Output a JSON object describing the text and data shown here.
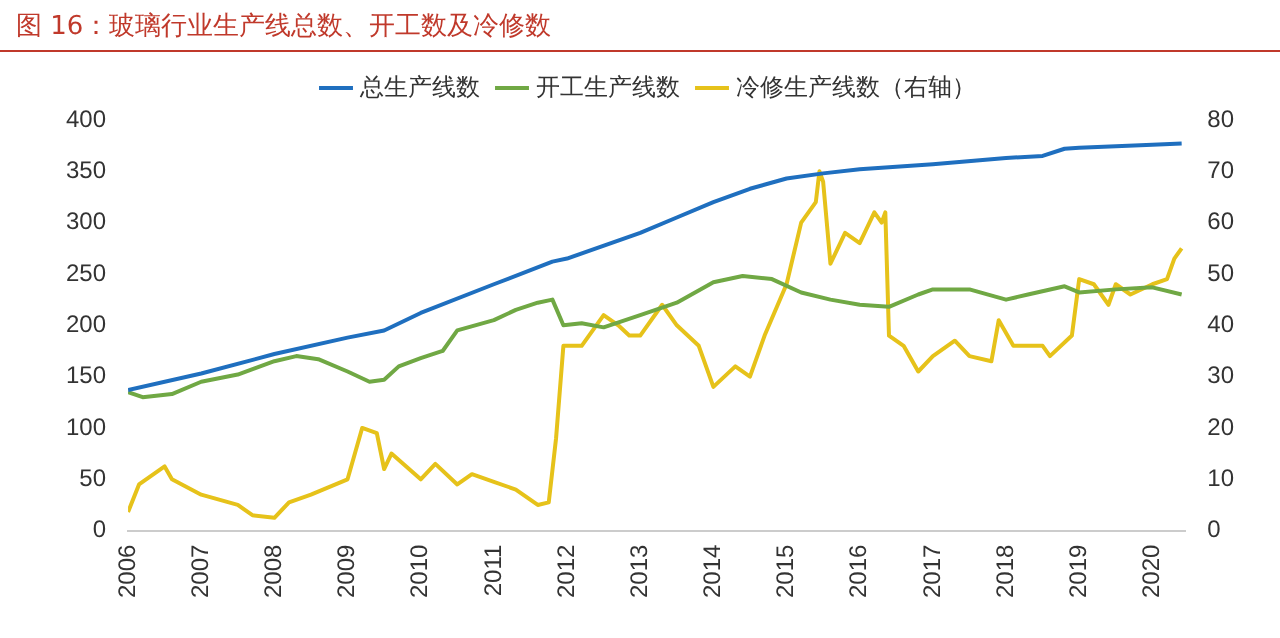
{
  "chart_data": {
    "type": "line",
    "title": "图 16：玻璃行业生产线总数、开工数及冷修数",
    "legend": "top",
    "grid": false,
    "marker": "none",
    "line_style": "solid",
    "xlim": [
      2006,
      2020.45
    ],
    "xticks": [
      2006,
      2007,
      2008,
      2009,
      2010,
      2011,
      2012,
      2013,
      2014,
      2015,
      2016,
      2017,
      2018,
      2019,
      2020
    ],
    "ylim": [
      0,
      400
    ],
    "yticks": [
      0,
      50,
      100,
      150,
      200,
      250,
      300,
      350,
      400
    ],
    "y2lim": [
      0,
      80
    ],
    "y2ticks": [
      0,
      10,
      20,
      30,
      40,
      50,
      60,
      70,
      80
    ],
    "series": [
      {
        "name": "总生产线数",
        "color": "#1f6fbf",
        "x": [
          2006,
          2007,
          2008,
          2009,
          2009.5,
          2010,
          2011,
          2011.8,
          2012,
          2013,
          2013.5,
          2014,
          2014.5,
          2015,
          2015.5,
          2016,
          2017,
          2018,
          2018.5,
          2018.8,
          2019,
          2020,
          2020.4
        ],
        "values": [
          137,
          153,
          172,
          188,
          195,
          212,
          240,
          262,
          265,
          290,
          305,
          320,
          333,
          343,
          348,
          352,
          357,
          363,
          365,
          372,
          373,
          376,
          377
        ]
      },
      {
        "name": "开工生产线数",
        "color": "#70a844",
        "x": [
          2006,
          2006.2,
          2006.6,
          2007,
          2007.5,
          2008,
          2008.3,
          2008.6,
          2009,
          2009.3,
          2009.5,
          2009.7,
          2010,
          2010.3,
          2010.5,
          2011,
          2011.3,
          2011.6,
          2011.8,
          2011.95,
          2012.2,
          2012.5,
          2013,
          2013.5,
          2014,
          2014.4,
          2014.8,
          2015.2,
          2015.6,
          2016,
          2016.4,
          2016.8,
          2017,
          2017.5,
          2018,
          2018.3,
          2018.8,
          2019,
          2019.5,
          2020,
          2020.4
        ],
        "values": [
          135,
          130,
          133,
          145,
          152,
          165,
          170,
          167,
          155,
          145,
          147,
          160,
          168,
          175,
          195,
          205,
          215,
          222,
          225,
          200,
          202,
          198,
          210,
          222,
          242,
          248,
          245,
          232,
          225,
          220,
          218,
          230,
          235,
          235,
          225,
          230,
          238,
          232,
          235,
          237,
          230
        ]
      },
      {
        "name": "冷修生产线数（右轴）",
        "color": "#e6c21a",
        "axis": "y2",
        "x": [
          2006,
          2006.15,
          2006.5,
          2006.6,
          2007,
          2007.5,
          2007.7,
          2008,
          2008.2,
          2008.5,
          2009,
          2009.2,
          2009.4,
          2009.5,
          2009.6,
          2010,
          2010.2,
          2010.5,
          2010.7,
          2011,
          2011.3,
          2011.6,
          2011.75,
          2011.85,
          2011.95,
          2012.2,
          2012.5,
          2012.7,
          2012.85,
          2013,
          2013.3,
          2013.5,
          2013.8,
          2014,
          2014.3,
          2014.5,
          2014.7,
          2015,
          2015.2,
          2015.4,
          2015.45,
          2015.5,
          2015.6,
          2015.8,
          2016,
          2016.2,
          2016.3,
          2016.35,
          2016.4,
          2016.6,
          2016.8,
          2017,
          2017.3,
          2017.5,
          2017.8,
          2017.9,
          2018.1,
          2018.5,
          2018.6,
          2018.9,
          2019,
          2019.2,
          2019.4,
          2019.5,
          2019.7,
          2020,
          2020.2,
          2020.3,
          2020.4
        ],
        "values": [
          3.6,
          9,
          12.5,
          10,
          7,
          5,
          3,
          2.5,
          5.5,
          7,
          10,
          20,
          19,
          12,
          15,
          10,
          13,
          9,
          11,
          9.5,
          8,
          5,
          5.5,
          18,
          36,
          36,
          42,
          40,
          38,
          38,
          44,
          40,
          36,
          28,
          32,
          30,
          38,
          48,
          60,
          64,
          70,
          68,
          52,
          58,
          56,
          62,
          60,
          62,
          38,
          36,
          31,
          34,
          37,
          34,
          33,
          41,
          36,
          36,
          34,
          38,
          49,
          48,
          44,
          48,
          46,
          48,
          49,
          53,
          55
        ]
      }
    ]
  }
}
